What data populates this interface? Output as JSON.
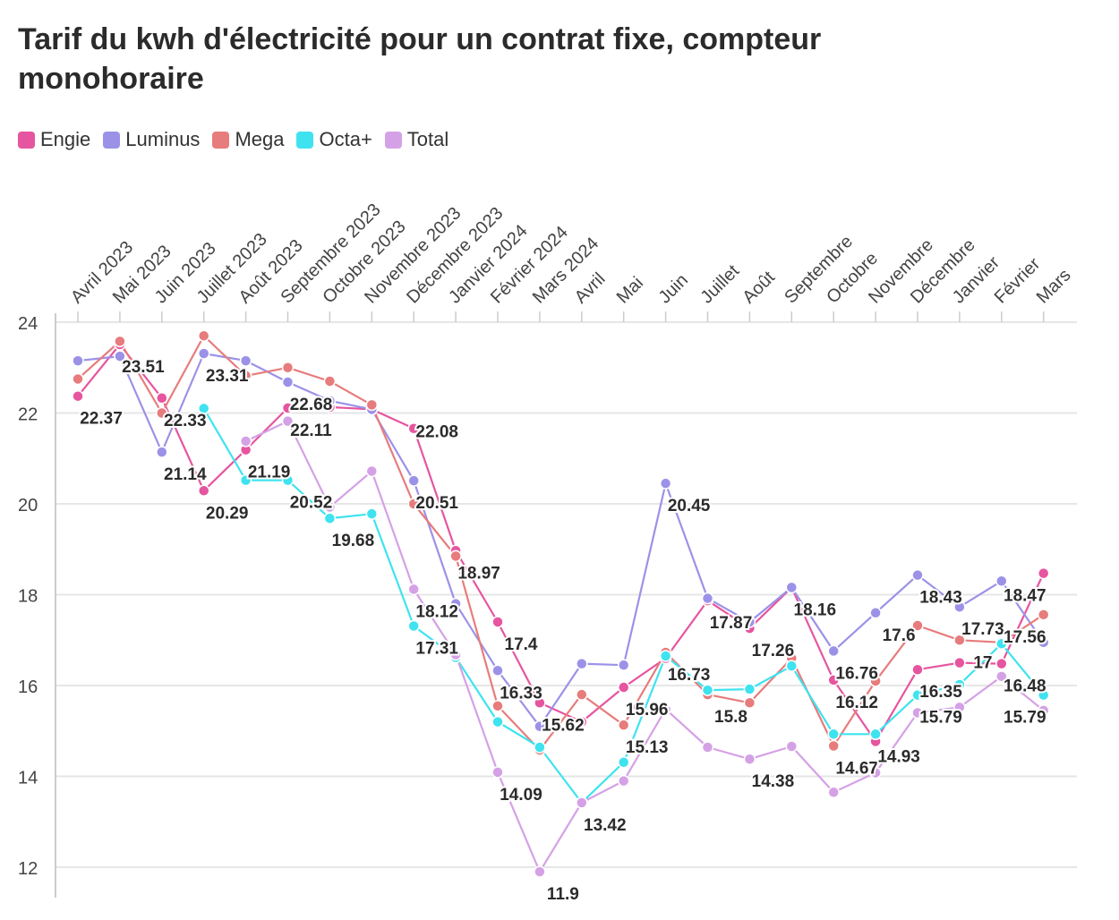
{
  "colors": {
    "Engie": "#e6559f",
    "Luminus": "#9b92e8",
    "Mega": "#e77c7c",
    "Octa+": "#3fe3ef",
    "Total": "#d5a1e6"
  },
  "chart_data": {
    "type": "line",
    "title": "Tarif du kwh d'électricité pour un contrat fixe, compteur monohoraire",
    "xlabel": "",
    "ylabel": "",
    "ylim": [
      12,
      24
    ],
    "yticks": [
      "12",
      "14",
      "16",
      "18",
      "20",
      "22",
      "24"
    ],
    "legend_position": "top-left",
    "grid": true,
    "categories": [
      "Avril 2023",
      "Mai 2023",
      "Juin 2023",
      "Juillet 2023",
      "Août 2023",
      "Septembre 2023",
      "Octobre 2023",
      "Novembre 2023",
      "Décembre 2023",
      "Janvier 2024",
      "Février 2024",
      "Mars 2024",
      "Avril",
      "Mai",
      "Juin",
      "Juillet",
      "Août",
      "Septembre",
      "Octobre",
      "Novembre",
      "Décembre",
      "Janvier",
      "Février",
      "Mars"
    ],
    "series": [
      {
        "name": "Engie",
        "values": [
          22.37,
          23.51,
          22.33,
          20.29,
          21.19,
          22.11,
          22.13,
          22.08,
          21.66,
          18.97,
          17.4,
          15.62,
          15.2,
          15.96,
          16.6,
          17.87,
          17.26,
          18.16,
          16.12,
          14.77,
          16.35,
          16.5,
          16.48,
          18.47
        ]
      },
      {
        "name": "Luminus",
        "values": [
          23.15,
          23.25,
          21.14,
          23.31,
          23.15,
          22.68,
          22.27,
          22.08,
          20.51,
          17.8,
          16.33,
          15.1,
          16.48,
          16.45,
          20.45,
          17.92,
          17.4,
          18.16,
          16.76,
          17.6,
          18.43,
          17.73,
          18.3,
          16.95
        ]
      },
      {
        "name": "Mega",
        "values": [
          22.75,
          23.58,
          22.0,
          23.7,
          22.82,
          23.0,
          22.7,
          22.18,
          20.0,
          18.85,
          15.55,
          14.58,
          15.8,
          15.13,
          16.73,
          15.8,
          15.62,
          16.6,
          14.67,
          16.1,
          17.32,
          17.0,
          16.95,
          17.56
        ]
      },
      {
        "name": "Octa+",
        "values": [
          null,
          null,
          null,
          22.1,
          20.52,
          20.52,
          19.68,
          19.78,
          17.31,
          16.62,
          15.2,
          14.64,
          13.42,
          14.31,
          16.65,
          15.9,
          15.92,
          16.43,
          14.93,
          14.93,
          15.79,
          16.02,
          16.92,
          15.79
        ]
      },
      {
        "name": "Total",
        "values": [
          null,
          null,
          null,
          null,
          21.38,
          21.82,
          19.93,
          20.72,
          18.12,
          16.68,
          14.09,
          11.9,
          13.42,
          13.9,
          15.48,
          14.64,
          14.38,
          14.66,
          13.65,
          14.08,
          15.4,
          15.52,
          16.2,
          15.45
        ]
      }
    ],
    "data_labels": [
      {
        "index": 0,
        "value": 22.37,
        "text": "22.37"
      },
      {
        "index": 1,
        "value": 23.51,
        "text": "23.51"
      },
      {
        "index": 2,
        "value": 22.33,
        "text": "22.33"
      },
      {
        "index": 2,
        "value": 21.14,
        "text": "21.14"
      },
      {
        "index": 3,
        "value": 23.31,
        "text": "23.31"
      },
      {
        "index": 3,
        "value": 20.29,
        "text": "20.29"
      },
      {
        "index": 4,
        "value": 21.19,
        "text": "21.19"
      },
      {
        "index": 5,
        "value": 22.68,
        "text": "22.68"
      },
      {
        "index": 5,
        "value": 22.11,
        "text": "22.11"
      },
      {
        "index": 5,
        "value": 20.52,
        "text": "20.52"
      },
      {
        "index": 6,
        "value": 19.68,
        "text": "19.68"
      },
      {
        "index": 8,
        "value": 22.08,
        "text": "22.08"
      },
      {
        "index": 8,
        "value": 20.51,
        "text": "20.51"
      },
      {
        "index": 9,
        "value": 18.97,
        "text": "18.97"
      },
      {
        "index": 8,
        "value": 18.12,
        "text": "18.12"
      },
      {
        "index": 8,
        "value": 17.31,
        "text": "17.31"
      },
      {
        "index": 10,
        "value": 17.4,
        "text": "17.4"
      },
      {
        "index": 10,
        "value": 16.33,
        "text": "16.33"
      },
      {
        "index": 10,
        "value": 14.09,
        "text": "14.09"
      },
      {
        "index": 11,
        "value": 15.62,
        "text": "15.62"
      },
      {
        "index": 11,
        "value": 11.9,
        "text": "11.9"
      },
      {
        "index": 12,
        "value": 13.42,
        "text": "13.42"
      },
      {
        "index": 13,
        "value": 15.96,
        "text": "15.96"
      },
      {
        "index": 13,
        "value": 15.13,
        "text": "15.13"
      },
      {
        "index": 14,
        "value": 20.45,
        "text": "20.45"
      },
      {
        "index": 14,
        "value": 16.73,
        "text": "16.73"
      },
      {
        "index": 15,
        "value": 17.87,
        "text": "17.87"
      },
      {
        "index": 15,
        "value": 15.8,
        "text": "15.8"
      },
      {
        "index": 16,
        "value": 17.26,
        "text": "17.26"
      },
      {
        "index": 16,
        "value": 14.38,
        "text": "14.38"
      },
      {
        "index": 17,
        "value": 18.16,
        "text": "18.16"
      },
      {
        "index": 18,
        "value": 16.76,
        "text": "16.76"
      },
      {
        "index": 18,
        "value": 16.12,
        "text": "16.12"
      },
      {
        "index": 18,
        "value": 14.67,
        "text": "14.67"
      },
      {
        "index": 19,
        "value": 17.6,
        "text": "17.6"
      },
      {
        "index": 19,
        "value": 14.93,
        "text": "14.93"
      },
      {
        "index": 20,
        "value": 18.43,
        "text": "18.43"
      },
      {
        "index": 20,
        "value": 16.35,
        "text": "16.35"
      },
      {
        "index": 20,
        "value": 15.79,
        "text": "15.79"
      },
      {
        "index": 21,
        "value": 17.73,
        "text": "17.73"
      },
      {
        "index": 21,
        "value": 17,
        "text": "17"
      },
      {
        "index": 22,
        "value": 18.47,
        "text": "18.47"
      },
      {
        "index": 22,
        "value": 17.56,
        "text": "17.56"
      },
      {
        "index": 22,
        "value": 16.48,
        "text": "16.48"
      },
      {
        "index": 22,
        "value": 15.79,
        "text": "15.79"
      }
    ]
  }
}
